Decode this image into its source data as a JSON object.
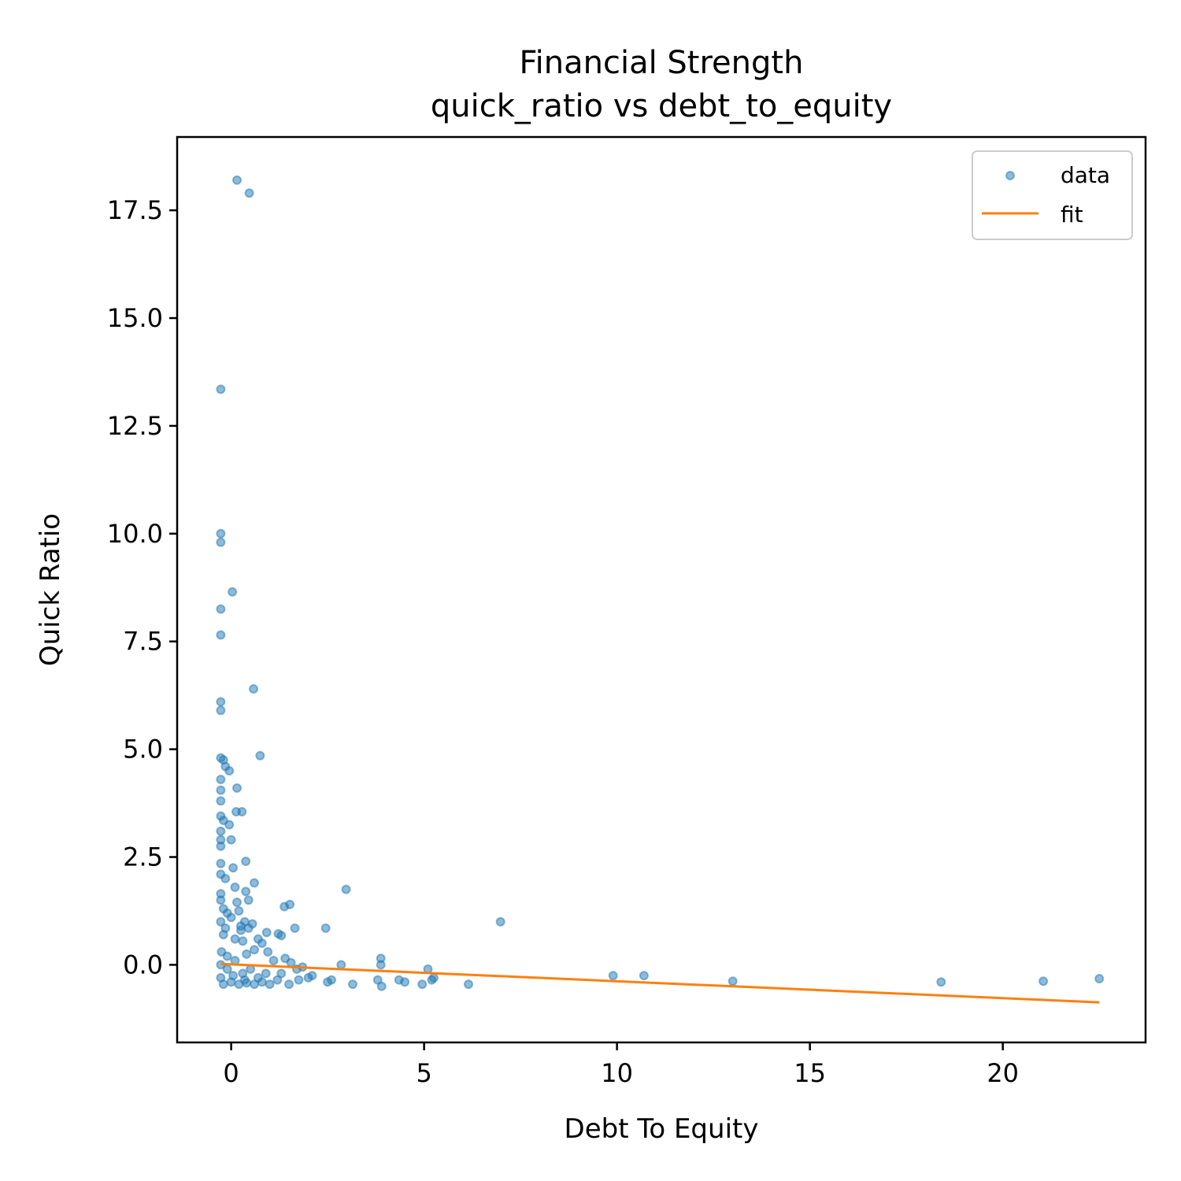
{
  "chart_data": {
    "type": "scatter",
    "title": "Financial Strength",
    "subtitle": "quick_ratio vs debt_to_equity",
    "xlabel": "Debt To Equity",
    "ylabel": "Quick Ratio",
    "xlim": [
      -1.4,
      23.7
    ],
    "ylim": [
      -1.8,
      19.2
    ],
    "x_ticks": [
      0,
      5,
      10,
      15,
      20
    ],
    "x_tick_labels": [
      "0",
      "5",
      "10",
      "15",
      "20"
    ],
    "y_ticks": [
      0,
      2.5,
      5,
      7.5,
      10,
      12.5,
      15,
      17.5
    ],
    "y_tick_labels": [
      "0.0",
      "2.5",
      "5.0",
      "7.5",
      "10.0",
      "12.5",
      "15.0",
      "17.5"
    ],
    "grid": false,
    "legend": {
      "position": "top-right",
      "entries": [
        "data",
        "fit"
      ]
    },
    "colors": {
      "data": "#1f77b4",
      "fit": "#ff7f0e"
    },
    "series": [
      {
        "name": "data",
        "kind": "scatter",
        "points": [
          [
            0.15,
            18.2
          ],
          [
            0.47,
            17.9
          ],
          [
            -0.27,
            13.35
          ],
          [
            -0.27,
            10.0
          ],
          [
            -0.27,
            9.8
          ],
          [
            0.03,
            8.65
          ],
          [
            -0.27,
            8.25
          ],
          [
            -0.27,
            7.65
          ],
          [
            0.58,
            6.4
          ],
          [
            -0.27,
            6.1
          ],
          [
            -0.27,
            5.9
          ],
          [
            0.75,
            4.85
          ],
          [
            -0.27,
            4.8
          ],
          [
            -0.2,
            4.75
          ],
          [
            -0.15,
            4.6
          ],
          [
            -0.05,
            4.5
          ],
          [
            -0.27,
            4.3
          ],
          [
            -0.27,
            4.05
          ],
          [
            0.15,
            4.1
          ],
          [
            -0.27,
            3.8
          ],
          [
            0.13,
            3.55
          ],
          [
            0.28,
            3.55
          ],
          [
            -0.27,
            3.45
          ],
          [
            -0.2,
            3.35
          ],
          [
            -0.05,
            3.25
          ],
          [
            -0.27,
            3.1
          ],
          [
            -0.27,
            2.9
          ],
          [
            0.0,
            2.9
          ],
          [
            -0.27,
            2.75
          ],
          [
            0.38,
            2.4
          ],
          [
            -0.27,
            2.35
          ],
          [
            0.05,
            2.25
          ],
          [
            -0.27,
            2.1
          ],
          [
            -0.15,
            2.0
          ],
          [
            0.6,
            1.9
          ],
          [
            0.1,
            1.8
          ],
          [
            -0.27,
            1.65
          ],
          [
            2.98,
            1.75
          ],
          [
            0.38,
            1.7
          ],
          [
            0.45,
            1.5
          ],
          [
            0.15,
            1.45
          ],
          [
            1.38,
            1.35
          ],
          [
            1.52,
            1.4
          ],
          [
            0.2,
            1.25
          ],
          [
            -0.1,
            1.2
          ],
          [
            6.98,
            1.0
          ],
          [
            0.35,
            1.0
          ],
          [
            0.55,
            0.95
          ],
          [
            0.45,
            0.85
          ],
          [
            2.45,
            0.85
          ],
          [
            1.65,
            0.85
          ],
          [
            0.25,
            0.8
          ],
          [
            0.92,
            0.75
          ],
          [
            1.22,
            0.72
          ],
          [
            1.3,
            0.68
          ],
          [
            0.7,
            0.6
          ],
          [
            0.8,
            0.5
          ],
          [
            0.3,
            0.55
          ],
          [
            0.1,
            0.6
          ],
          [
            -0.2,
            0.7
          ],
          [
            -0.25,
            0.3
          ],
          [
            -0.1,
            0.2
          ],
          [
            0.1,
            0.1
          ],
          [
            0.4,
            0.25
          ],
          [
            0.95,
            0.3
          ],
          [
            1.1,
            0.1
          ],
          [
            1.4,
            0.15
          ],
          [
            1.55,
            0.05
          ],
          [
            1.85,
            -0.05
          ],
          [
            2.1,
            -0.25
          ],
          [
            2.6,
            -0.35
          ],
          [
            2.85,
            0.0
          ],
          [
            3.15,
            -0.45
          ],
          [
            3.8,
            -0.35
          ],
          [
            3.88,
            0.15
          ],
          [
            3.88,
            0.0
          ],
          [
            3.9,
            -0.5
          ],
          [
            4.35,
            -0.35
          ],
          [
            4.5,
            -0.4
          ],
          [
            4.95,
            -0.45
          ],
          [
            5.1,
            -0.1
          ],
          [
            5.2,
            -0.35
          ],
          [
            5.25,
            -0.3
          ],
          [
            6.15,
            -0.45
          ],
          [
            9.9,
            -0.25
          ],
          [
            10.7,
            -0.25
          ],
          [
            13.0,
            -0.38
          ],
          [
            18.4,
            -0.4
          ],
          [
            21.05,
            -0.38
          ],
          [
            22.5,
            -0.32
          ],
          [
            -0.27,
            -0.3
          ],
          [
            -0.2,
            -0.45
          ],
          [
            0.0,
            -0.4
          ],
          [
            0.2,
            -0.45
          ],
          [
            0.4,
            -0.42
          ],
          [
            0.6,
            -0.45
          ],
          [
            0.8,
            -0.4
          ],
          [
            1.0,
            -0.45
          ],
          [
            1.2,
            -0.35
          ],
          [
            1.5,
            -0.45
          ],
          [
            1.75,
            -0.35
          ],
          [
            2.5,
            -0.4
          ],
          [
            -0.1,
            -0.1
          ],
          [
            0.3,
            -0.2
          ],
          [
            0.7,
            -0.3
          ],
          [
            1.3,
            -0.2
          ],
          [
            -0.27,
            0.0
          ],
          [
            0.05,
            -0.25
          ],
          [
            0.5,
            -0.1
          ],
          [
            0.9,
            -0.2
          ],
          [
            -0.27,
            1.0
          ],
          [
            -0.2,
            1.3
          ],
          [
            -0.27,
            1.5
          ],
          [
            0.0,
            1.1
          ],
          [
            0.25,
            0.9
          ],
          [
            -0.15,
            0.85
          ],
          [
            0.6,
            0.35
          ],
          [
            1.7,
            -0.1
          ],
          [
            2.0,
            -0.3
          ],
          [
            0.35,
            -0.35
          ]
        ]
      },
      {
        "name": "fit",
        "kind": "line",
        "points": [
          [
            -0.27,
            0.02
          ],
          [
            22.5,
            -0.87
          ]
        ]
      }
    ]
  }
}
